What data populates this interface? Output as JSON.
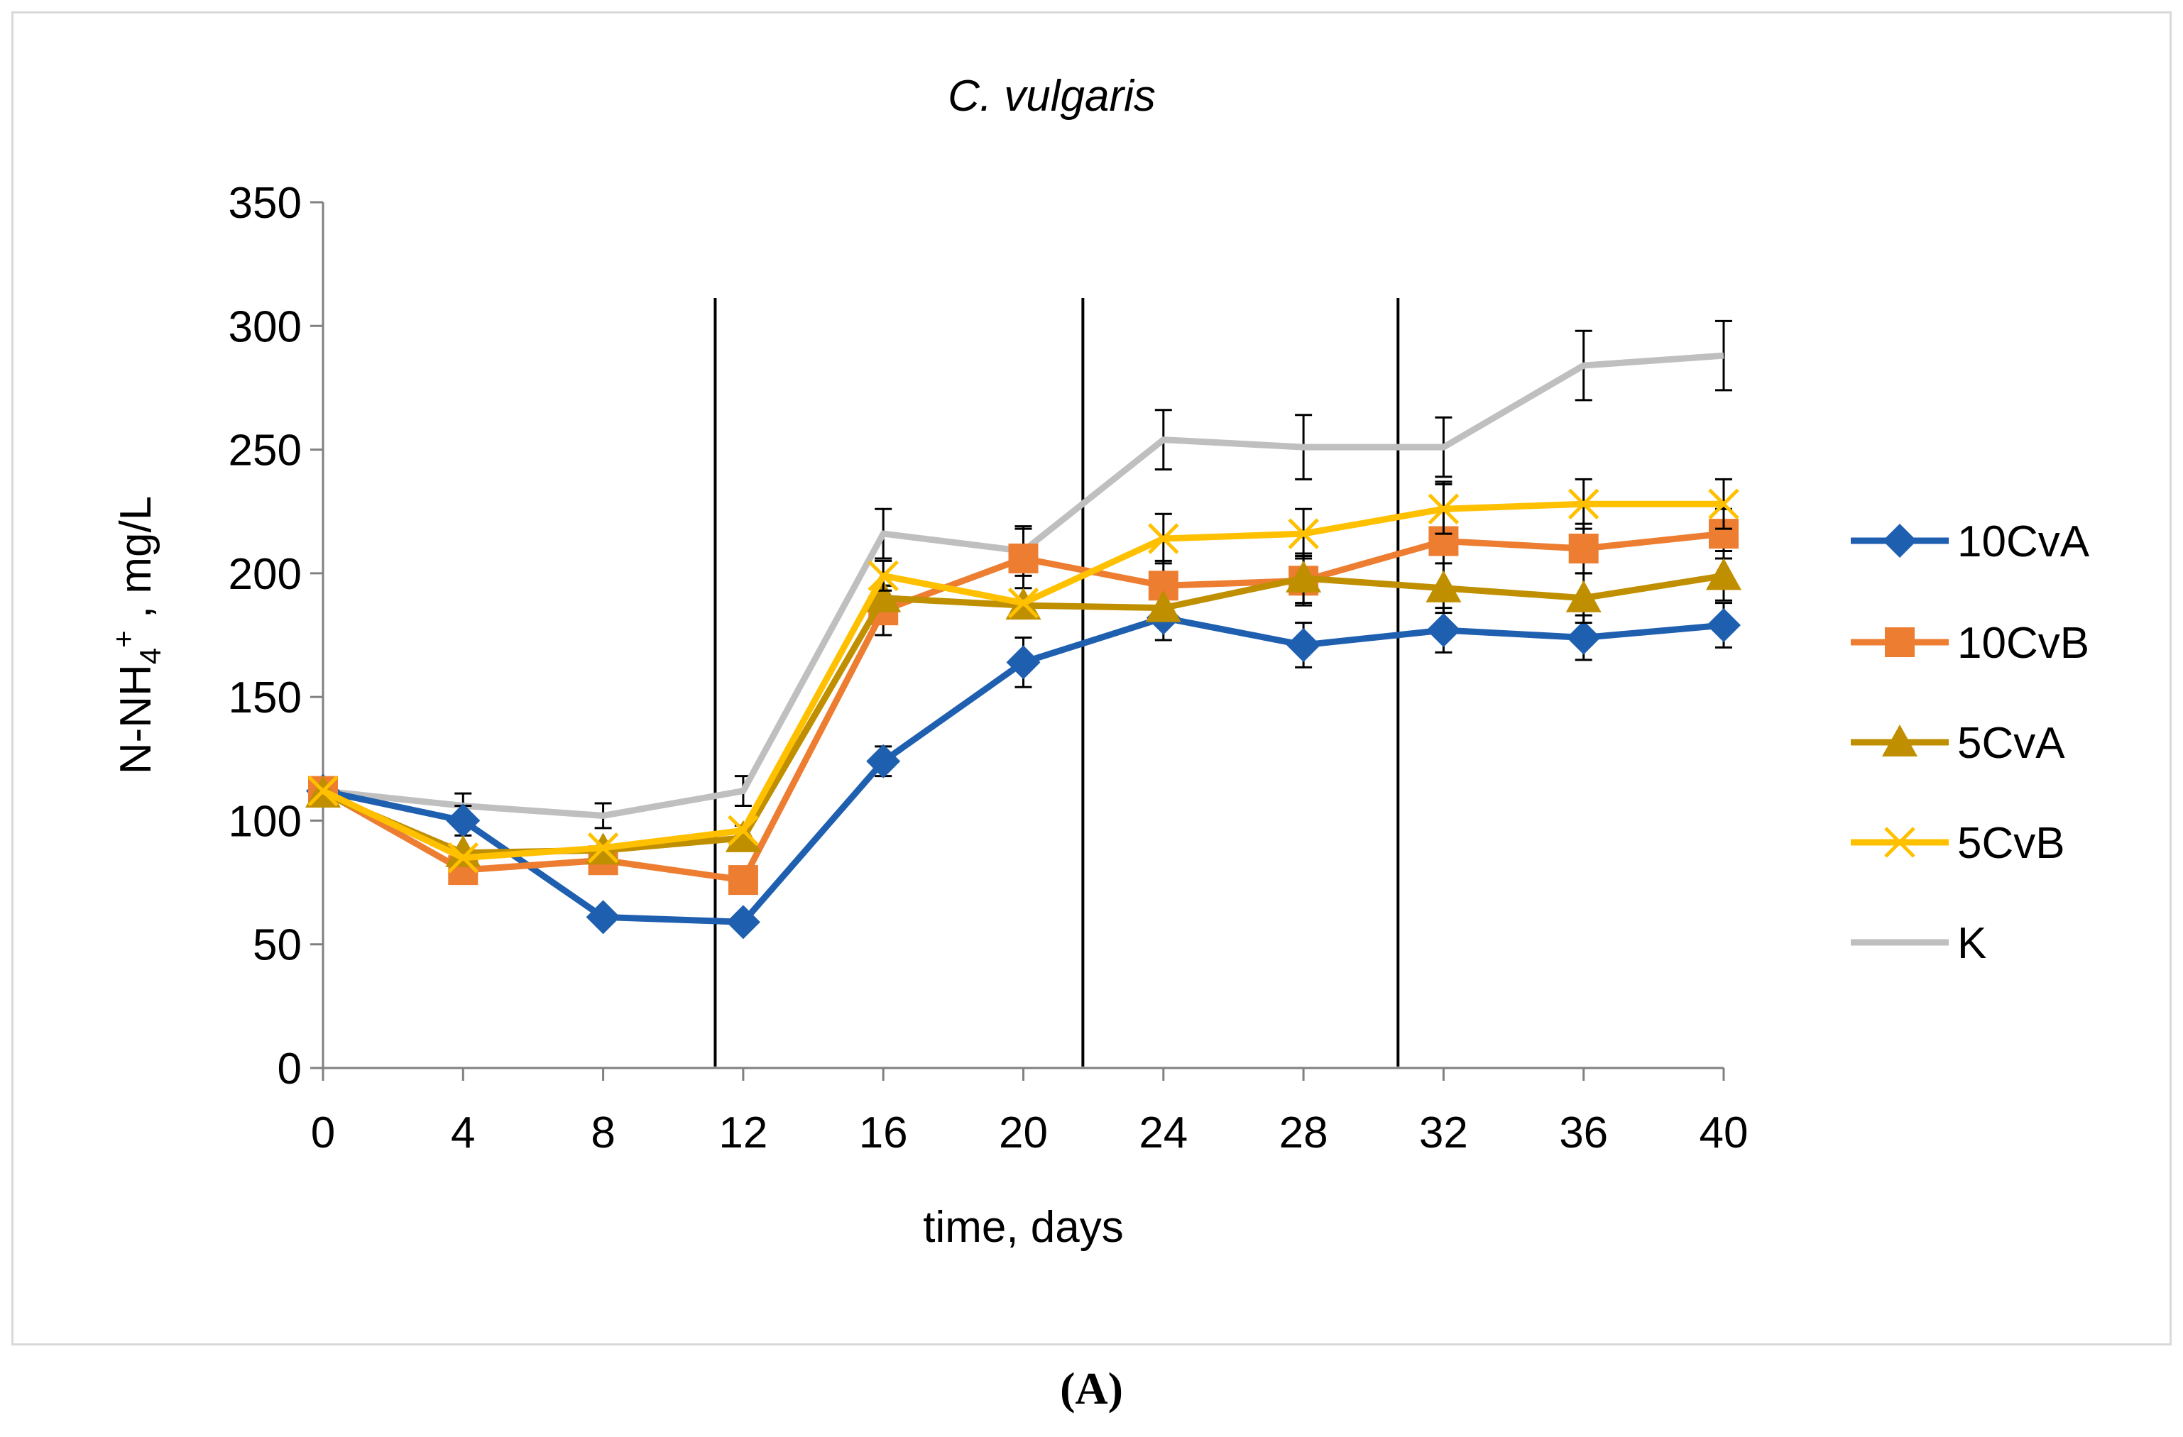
{
  "chart_data": {
    "type": "line",
    "title": "C. vulgaris",
    "xlabel": "time, days",
    "ylabel": "N-NH4+ , mg/L",
    "ylabel_parts": {
      "base": "N-NH",
      "sub": "4",
      "sup": "+",
      "rest": " , mg/L"
    },
    "x": [
      0,
      4,
      8,
      12,
      16,
      20,
      24,
      28,
      32,
      36,
      40
    ],
    "xlim": [
      0,
      40
    ],
    "ylim": [
      0,
      350
    ],
    "yticks": [
      0,
      50,
      100,
      150,
      200,
      250,
      300,
      350
    ],
    "vertical_lines": [
      11.2,
      21.7,
      30.7
    ],
    "legend_position": "right",
    "series": [
      {
        "name": "10CvA",
        "color": "#1f5fb0",
        "marker": "diamond",
        "values": [
          112,
          100,
          61,
          59,
          124,
          164,
          182,
          171,
          177,
          174,
          179
        ],
        "errors": [
          0,
          6,
          0,
          0,
          6,
          10,
          9,
          9,
          9,
          9,
          9
        ]
      },
      {
        "name": "10CvB",
        "color": "#ed7d31",
        "marker": "square",
        "values": [
          112,
          80,
          84,
          76,
          185,
          206,
          195,
          197,
          213,
          210,
          216
        ],
        "errors": [
          0,
          5,
          5,
          0,
          10,
          12,
          10,
          10,
          24,
          10,
          10
        ]
      },
      {
        "name": "5CvA",
        "color": "#bf8f00",
        "marker": "triangle",
        "values": [
          111,
          87,
          88,
          93,
          190,
          187,
          186,
          198,
          194,
          190,
          199
        ],
        "errors": [
          0,
          0,
          0,
          5,
          5,
          0,
          0,
          10,
          10,
          10,
          10
        ]
      },
      {
        "name": "5CvB",
        "color": "#ffc000",
        "marker": "x",
        "values": [
          112,
          85,
          89,
          96,
          199,
          188,
          214,
          216,
          226,
          228,
          228
        ],
        "errors": [
          0,
          0,
          0,
          0,
          6,
          0,
          10,
          10,
          10,
          10,
          10
        ]
      },
      {
        "name": "K",
        "color": "#bfbfbf",
        "marker": "none",
        "values": [
          112,
          106,
          102,
          112,
          216,
          209,
          254,
          251,
          251,
          284,
          288
        ],
        "errors": [
          0,
          5,
          5,
          6,
          10,
          10,
          12,
          13,
          12,
          14,
          14
        ]
      }
    ]
  },
  "panel_label": "(A)"
}
